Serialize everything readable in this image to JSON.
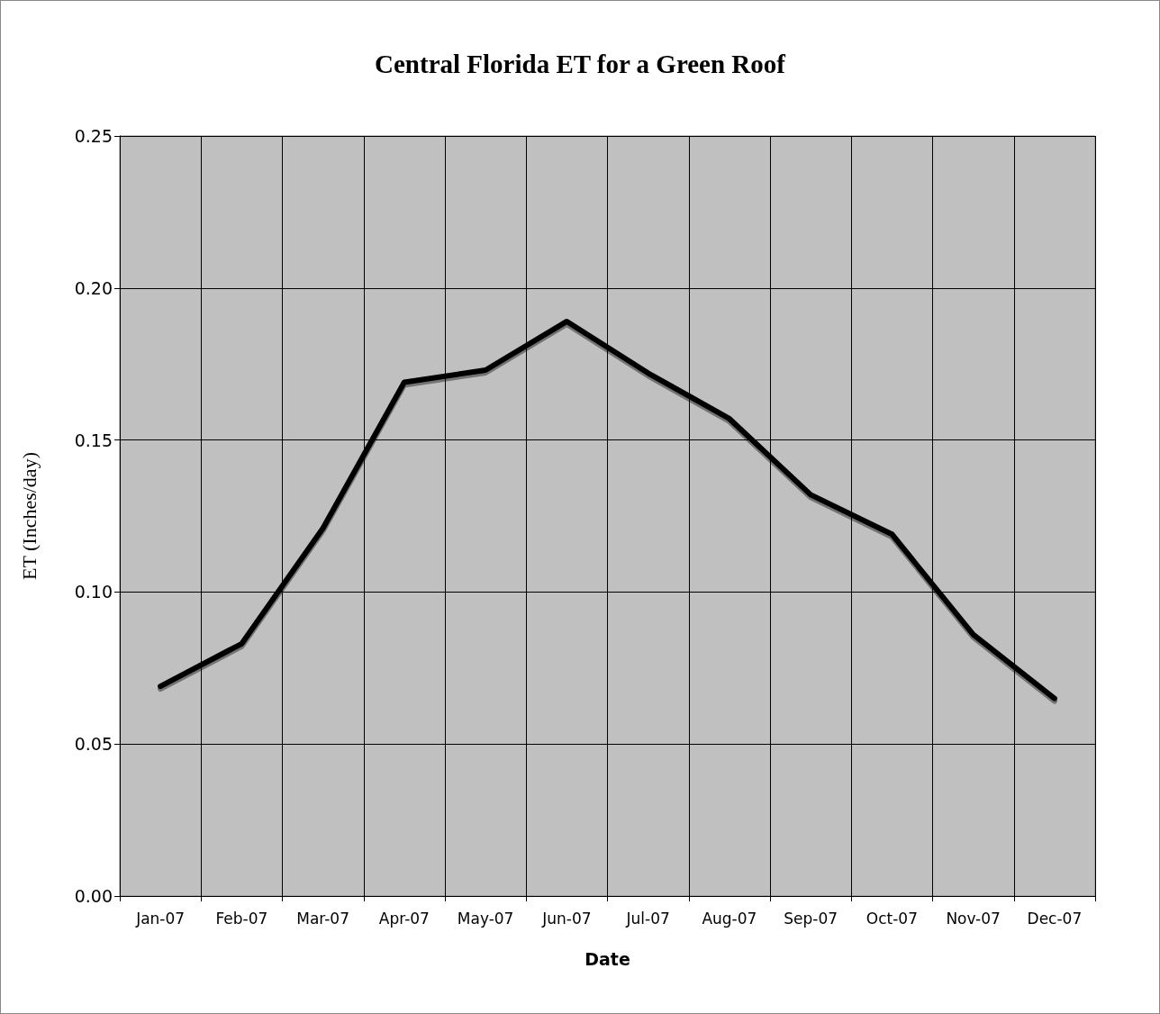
{
  "chart_data": {
    "type": "line",
    "title": "Central Florida ET for a Green Roof",
    "xlabel": "Date",
    "ylabel": "ET (Inches/day)",
    "categories": [
      "Jan-07",
      "Feb-07",
      "Mar-07",
      "Apr-07",
      "May-07",
      "Jun-07",
      "Jul-07",
      "Aug-07",
      "Sep-07",
      "Oct-07",
      "Nov-07",
      "Dec-07"
    ],
    "series": [
      {
        "color": "#000000",
        "values": [
          0.069,
          0.083,
          0.121,
          0.169,
          0.173,
          0.189,
          0.172,
          0.157,
          0.132,
          0.119,
          0.086,
          0.065
        ]
      }
    ],
    "ylim": [
      0,
      0.25
    ],
    "yticks": [
      {
        "value": 0,
        "label": "0.00"
      },
      {
        "value": 0.05,
        "label": "0.05"
      },
      {
        "value": 0.1,
        "label": "0.10"
      },
      {
        "value": 0.15,
        "label": "0.15"
      },
      {
        "value": 0.2,
        "label": "0.20"
      },
      {
        "value": 0.25,
        "label": "0.25"
      }
    ],
    "grid": true,
    "marker": "none",
    "line_style": "solid"
  }
}
